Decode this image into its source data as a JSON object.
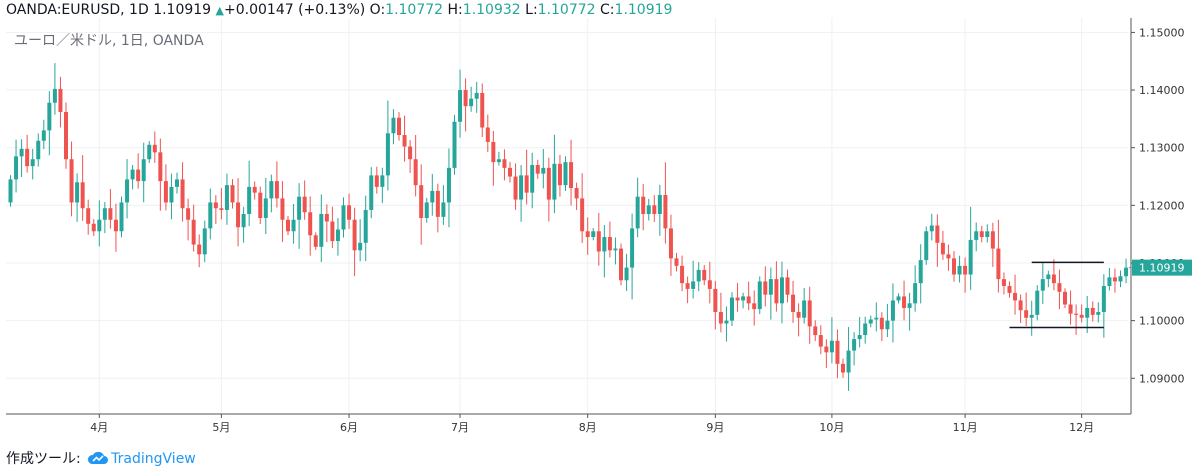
{
  "header": {
    "symbol": "OANDA:EURUSD, 1D",
    "last": "1.10919",
    "change_arrow": "up-triangle-icon",
    "change": "+0.00147 (+0.13%)",
    "o_label": "O:",
    "o_value": "1.10772",
    "h_label": "H:",
    "h_value": "1.10932",
    "l_label": "L:",
    "l_value": "1.10772",
    "c_label": "C:",
    "c_value": "1.10919"
  },
  "watermark": "ユーロ／米ドル, 1日, OANDA",
  "footer": {
    "prefix": "作成ツール:",
    "brand": "TradingView",
    "logo": "cloud-icon"
  },
  "colors": {
    "up": "#26a69a",
    "down": "#ef5350",
    "grid": "#eef0f3",
    "axis": "#555555",
    "last_price_bg": "#26a69a"
  },
  "chart_data": {
    "type": "candlestick",
    "ylim": [
      1.0838,
      1.1525
    ],
    "y_ticks": [
      "1.15000",
      "1.14000",
      "1.13000",
      "1.12000",
      "1.11000",
      "1.10000",
      "1.09000"
    ],
    "x_ticks": [
      {
        "label": "4月",
        "index": 16
      },
      {
        "label": "5月",
        "index": 38
      },
      {
        "label": "6月",
        "index": 61
      },
      {
        "label": "7月",
        "index": 81
      },
      {
        "label": "8月",
        "index": 104
      },
      {
        "label": "9月",
        "index": 127
      },
      {
        "label": "10月",
        "index": 148
      },
      {
        "label": "11月",
        "index": 172
      },
      {
        "label": "12月",
        "index": 193
      }
    ],
    "last_price_label": "1.10919",
    "last_price": 1.10919,
    "annotations": [
      {
        "type": "hline",
        "from_index": 184,
        "to_index": 197,
        "value": 1.1101
      },
      {
        "type": "hline",
        "from_index": 180,
        "to_index": 197,
        "value": 1.0988
      }
    ],
    "close": [
      1.1245,
      1.1285,
      1.1298,
      1.1268,
      1.128,
      1.1312,
      1.133,
      1.1378,
      1.1402,
      1.1362,
      1.128,
      1.1205,
      1.124,
      1.1195,
      1.1168,
      1.1155,
      1.1175,
      1.1195,
      1.1175,
      1.1155,
      1.1205,
      1.1245,
      1.1262,
      1.1242,
      1.128,
      1.1305,
      1.1292,
      1.1242,
      1.1205,
      1.1232,
      1.1245,
      1.1195,
      1.1175,
      1.1132,
      1.1115,
      1.116,
      1.1205,
      1.1195,
      1.1192,
      1.1235,
      1.1205,
      1.1162,
      1.1185,
      1.1232,
      1.1222,
      1.1178,
      1.1212,
      1.1242,
      1.1212,
      1.1175,
      1.1155,
      1.1175,
      1.1215,
      1.1188,
      1.1148,
      1.1128,
      1.1185,
      1.1172,
      1.1138,
      1.1158,
      1.12,
      1.1175,
      1.1122,
      1.1135,
      1.1192,
      1.1252,
      1.1232,
      1.1252,
      1.1325,
      1.1352,
      1.1322,
      1.1302,
      1.128,
      1.1235,
      1.1178,
      1.1205,
      1.1225,
      1.118,
      1.1205,
      1.1265,
      1.1345,
      1.14,
      1.1372,
      1.1385,
      1.1395,
      1.1335,
      1.131,
      1.1275,
      1.128,
      1.1265,
      1.125,
      1.121,
      1.1252,
      1.1222,
      1.127,
      1.1255,
      1.1265,
      1.121,
      1.1272,
      1.1235,
      1.1275,
      1.123,
      1.1212,
      1.1155,
      1.1145,
      1.1155,
      1.112,
      1.1145,
      1.1122,
      1.1125,
      1.107,
      1.1092,
      1.116,
      1.1215,
      1.1185,
      1.12,
      1.1185,
      1.1218,
      1.116,
      1.1108,
      1.1095,
      1.1065,
      1.1055,
      1.1068,
      1.1088,
      1.107,
      1.1055,
      1.1015,
      1.0995,
      1.1,
      1.104,
      1.1035,
      1.1042,
      1.103,
      1.102,
      1.1068,
      1.1045,
      1.1072,
      1.103,
      1.1075,
      1.1045,
      1.1015,
      1.1005,
      1.1035,
      1.099,
      1.0975,
      1.0955,
      1.0945,
      1.0965,
      1.0925,
      1.091,
      1.0948,
      1.0968,
      1.0975,
      1.0995,
      1.1002,
      1.1005,
      1.0985,
      1.1,
      1.1035,
      1.1042,
      1.1022,
      1.103,
      1.1065,
      1.1105,
      1.1155,
      1.1165,
      1.1135,
      1.1115,
      1.1108,
      1.108,
      1.1095,
      1.108,
      1.114,
      1.1155,
      1.1145,
      1.1155,
      1.1125,
      1.1072,
      1.106,
      1.1048,
      1.1035,
      1.1018,
      1.1005,
      1.101,
      1.1052,
      1.1072,
      1.108,
      1.1065,
      1.105,
      1.1028,
      1.1012,
      1.101,
      1.1005,
      1.1022,
      1.101,
      1.1015,
      1.106,
      1.1075,
      1.1068,
      1.1077,
      1.10919
    ]
  }
}
